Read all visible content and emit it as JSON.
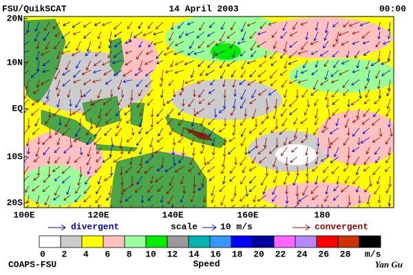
{
  "header": {
    "title": "FSU/QuikSCAT",
    "date": "14 April 2003",
    "time": "00:00"
  },
  "map": {
    "lat_labels": [
      "20N",
      "10N",
      "EQ",
      "10S",
      "20S"
    ],
    "lon_labels": [
      "100E",
      "120E",
      "140E",
      "160E",
      "180"
    ]
  },
  "legend": {
    "divergent": "divergent",
    "scale": "scale",
    "scale_value": "10 m/s",
    "convergent": "convergent"
  },
  "colorbar": {
    "colors": [
      "#ffffff",
      "#cccccc",
      "#ffff00",
      "#ffc0c0",
      "#99ff99",
      "#00ee00",
      "#999999",
      "#00b3b3",
      "#3399ff",
      "#0000ff",
      "#0000a0",
      "#ff66ff",
      "#b388ff",
      "#ff0000",
      "#cc3300",
      "#000000"
    ],
    "ticks": [
      0,
      2,
      4,
      6,
      8,
      10,
      12,
      14,
      16,
      18,
      20,
      22,
      24,
      26,
      28
    ],
    "unit": "m/s",
    "label": "Speed"
  },
  "footer": {
    "credit": "COAPS-FSU",
    "author": "Yan Gu"
  }
}
